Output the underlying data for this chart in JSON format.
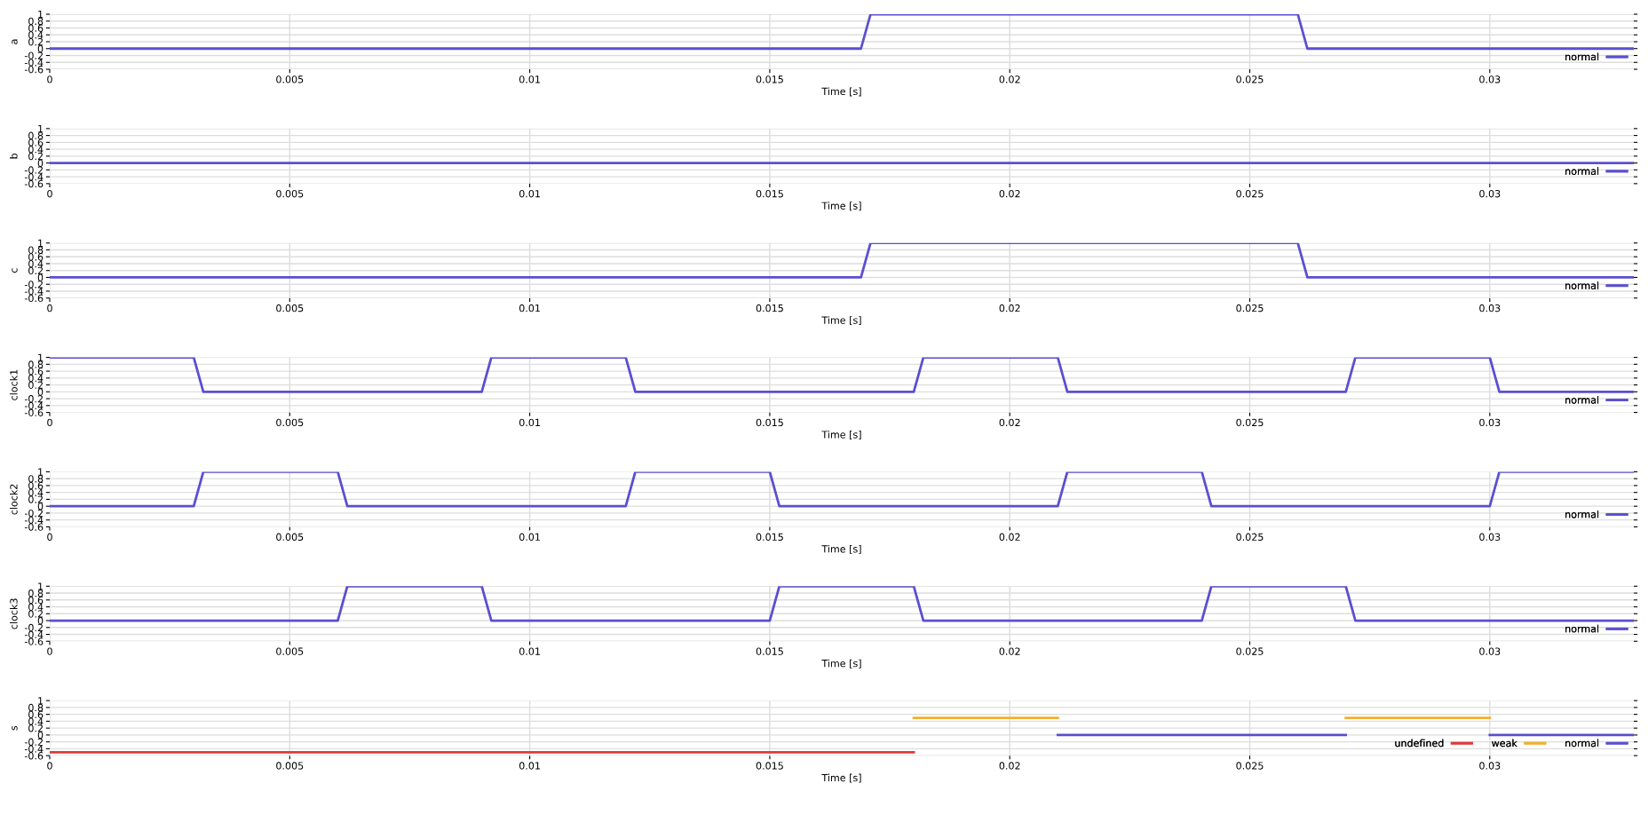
{
  "chart_data": [
    {
      "type": "line",
      "ylabel": "a",
      "xlabel": "Time [s]",
      "xlim": [
        0,
        0.033
      ],
      "ylim": [
        -0.6,
        1
      ],
      "xticks": [
        0,
        0.005,
        0.01,
        0.015,
        0.02,
        0.025,
        0.03
      ],
      "yticks": [
        -0.6,
        -0.4,
        -0.2,
        0,
        0.2,
        0.4,
        0.6,
        0.8,
        1
      ],
      "grid": true,
      "legend": "bottom right",
      "series": [
        {
          "name": "normal",
          "color": "#5b4fd0",
          "x": [
            0,
            0.0169,
            0.0171,
            0.026,
            0.0262,
            0.033
          ],
          "values": [
            0,
            0,
            1,
            1,
            0,
            0
          ]
        }
      ]
    },
    {
      "type": "line",
      "ylabel": "b",
      "xlabel": "Time [s]",
      "xlim": [
        0,
        0.033
      ],
      "ylim": [
        -0.6,
        1
      ],
      "xticks": [
        0,
        0.005,
        0.01,
        0.015,
        0.02,
        0.025,
        0.03
      ],
      "yticks": [
        -0.6,
        -0.4,
        -0.2,
        0,
        0.2,
        0.4,
        0.6,
        0.8,
        1
      ],
      "grid": true,
      "legend": "bottom right",
      "series": [
        {
          "name": "normal",
          "color": "#5b4fd0",
          "x": [
            0,
            0.033
          ],
          "values": [
            0,
            0
          ]
        }
      ]
    },
    {
      "type": "line",
      "ylabel": "c",
      "xlabel": "Time [s]",
      "xlim": [
        0,
        0.033
      ],
      "ylim": [
        -0.6,
        1
      ],
      "xticks": [
        0,
        0.005,
        0.01,
        0.015,
        0.02,
        0.025,
        0.03
      ],
      "yticks": [
        -0.6,
        -0.4,
        -0.2,
        0,
        0.2,
        0.4,
        0.6,
        0.8,
        1
      ],
      "grid": true,
      "legend": "bottom right",
      "series": [
        {
          "name": "normal",
          "color": "#5b4fd0",
          "x": [
            0,
            0.0169,
            0.0171,
            0.026,
            0.0262,
            0.033
          ],
          "values": [
            0,
            0,
            1,
            1,
            0,
            0
          ]
        }
      ]
    },
    {
      "type": "line",
      "ylabel": "clock1",
      "xlabel": "Time [s]",
      "xlim": [
        0,
        0.033
      ],
      "ylim": [
        -0.6,
        1
      ],
      "xticks": [
        0,
        0.005,
        0.01,
        0.015,
        0.02,
        0.025,
        0.03
      ],
      "yticks": [
        -0.6,
        -0.4,
        -0.2,
        0,
        0.2,
        0.4,
        0.6,
        0.8,
        1
      ],
      "grid": true,
      "legend": "bottom right",
      "series": [
        {
          "name": "normal",
          "color": "#5b4fd0",
          "x": [
            0,
            0.003,
            0.0032,
            0.009,
            0.0092,
            0.012,
            0.0122,
            0.018,
            0.0182,
            0.021,
            0.0212,
            0.027,
            0.0272,
            0.03,
            0.0302,
            0.033
          ],
          "values": [
            1,
            1,
            0,
            0,
            1,
            1,
            0,
            0,
            1,
            1,
            0,
            0,
            1,
            1,
            0,
            0
          ]
        }
      ]
    },
    {
      "type": "line",
      "ylabel": "clock2",
      "xlabel": "Time [s]",
      "xlim": [
        0,
        0.033
      ],
      "ylim": [
        -0.6,
        1
      ],
      "xticks": [
        0,
        0.005,
        0.01,
        0.015,
        0.02,
        0.025,
        0.03
      ],
      "yticks": [
        -0.6,
        -0.4,
        -0.2,
        0,
        0.2,
        0.4,
        0.6,
        0.8,
        1
      ],
      "grid": true,
      "legend": "bottom right",
      "series": [
        {
          "name": "normal",
          "color": "#5b4fd0",
          "x": [
            0,
            0.003,
            0.0032,
            0.006,
            0.0062,
            0.012,
            0.0122,
            0.015,
            0.0152,
            0.021,
            0.0212,
            0.024,
            0.0242,
            0.03,
            0.0302,
            0.033
          ],
          "values": [
            0,
            0,
            1,
            1,
            0,
            0,
            1,
            1,
            0,
            0,
            1,
            1,
            0,
            0,
            1,
            1
          ]
        }
      ]
    },
    {
      "type": "line",
      "ylabel": "clock3",
      "xlabel": "Time [s]",
      "xlim": [
        0,
        0.033
      ],
      "ylim": [
        -0.6,
        1
      ],
      "xticks": [
        0,
        0.005,
        0.01,
        0.015,
        0.02,
        0.025,
        0.03
      ],
      "yticks": [
        -0.6,
        -0.4,
        -0.2,
        0,
        0.2,
        0.4,
        0.6,
        0.8,
        1
      ],
      "grid": true,
      "legend": "bottom right",
      "series": [
        {
          "name": "normal",
          "color": "#5b4fd0",
          "x": [
            0,
            0.006,
            0.0062,
            0.009,
            0.0092,
            0.015,
            0.0152,
            0.018,
            0.0182,
            0.024,
            0.0242,
            0.027,
            0.0272,
            0.033
          ],
          "values": [
            0,
            0,
            1,
            1,
            0,
            0,
            1,
            1,
            0,
            0,
            1,
            1,
            0,
            0
          ]
        }
      ]
    },
    {
      "type": "line",
      "ylabel": "s",
      "xlabel": "Time [s]",
      "xlim": [
        0,
        0.033
      ],
      "ylim": [
        -0.6,
        1
      ],
      "xticks": [
        0,
        0.005,
        0.01,
        0.015,
        0.02,
        0.025,
        0.03
      ],
      "yticks": [
        -0.6,
        -0.4,
        -0.2,
        0,
        0.2,
        0.4,
        0.6,
        0.8,
        1
      ],
      "grid": true,
      "legend": "bottom right",
      "series": [
        {
          "name": "undefined",
          "color": "#e03a3a",
          "x": [
            0,
            0.018
          ],
          "values": [
            -0.5,
            -0.5
          ]
        },
        {
          "name": "weak",
          "color": "#f0b030",
          "x": [
            0.018,
            0.021,
            0.024,
            0.027,
            0.03
          ],
          "values": [
            0.5,
            0.5,
            null,
            0.5,
            0.5
          ]
        },
        {
          "name": "normal",
          "color": "#5b4fd0",
          "x": [
            0.021,
            0.027,
            0.0285,
            0.03,
            0.033
          ],
          "values": [
            0,
            0,
            null,
            0,
            0
          ]
        }
      ]
    }
  ]
}
